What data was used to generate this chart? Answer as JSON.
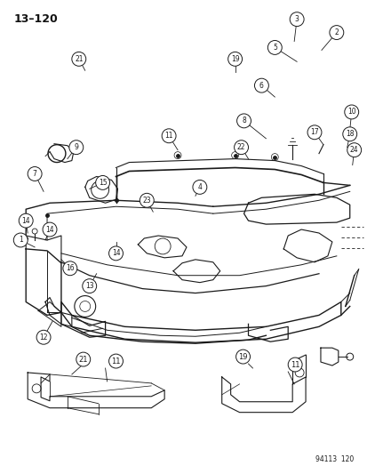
{
  "bg_color": "#ffffff",
  "line_color": "#1a1a1a",
  "fig_width": 4.14,
  "fig_height": 5.33,
  "dpi": 100,
  "page_label": "13–120",
  "catalog_num": "94113  120"
}
